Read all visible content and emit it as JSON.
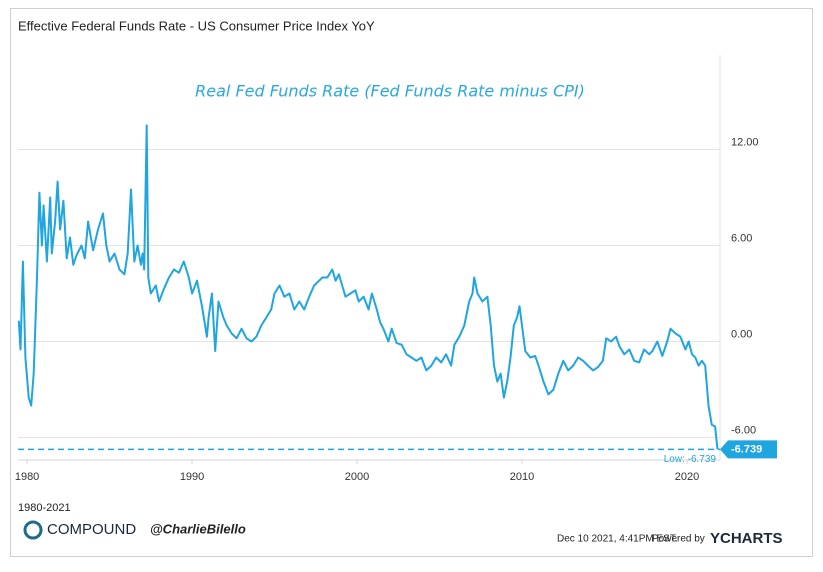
{
  "chart_data": {
    "type": "line",
    "title": "Effective Federal Funds Rate - US Consumer Price Index YoY",
    "annotation": "Real Fed Funds Rate (Fed Funds Rate minus CPI)",
    "color": "#1fa5e0",
    "x": [
      1979.5,
      1979.6,
      1979.75,
      1979.9,
      1980.1,
      1980.25,
      1980.4,
      1980.6,
      1980.75,
      1980.9,
      1981.0,
      1981.2,
      1981.4,
      1981.5,
      1981.7,
      1981.85,
      1982.0,
      1982.2,
      1982.4,
      1982.6,
      1982.8,
      1983.0,
      1983.3,
      1983.5,
      1983.7,
      1984.0,
      1984.3,
      1984.6,
      1984.8,
      1985.0,
      1985.3,
      1985.6,
      1985.9,
      1986.1,
      1986.3,
      1986.5,
      1986.7,
      1986.9,
      1987.0,
      1987.1,
      1987.25,
      1987.35,
      1987.5,
      1987.8,
      1988.0,
      1988.3,
      1988.6,
      1988.9,
      1989.2,
      1989.5,
      1989.8,
      1990.0,
      1990.3,
      1990.6,
      1990.9,
      1991.0,
      1991.2,
      1991.4,
      1991.6,
      1991.9,
      1992.1,
      1992.4,
      1992.7,
      1993.0,
      1993.3,
      1993.6,
      1993.9,
      1994.2,
      1994.5,
      1994.8,
      1995.0,
      1995.3,
      1995.6,
      1995.9,
      1996.2,
      1996.5,
      1996.8,
      1997.1,
      1997.4,
      1997.7,
      1997.9,
      1998.2,
      1998.5,
      1998.7,
      1998.9,
      1999.1,
      1999.3,
      1999.6,
      1999.9,
      2000.1,
      2000.4,
      2000.7,
      2000.9,
      2001.2,
      2001.4,
      2001.6,
      2001.9,
      2002.1,
      2002.4,
      2002.7,
      2003.0,
      2003.3,
      2003.6,
      2003.9,
      2004.2,
      2004.5,
      2004.8,
      2005.1,
      2005.4,
      2005.7,
      2005.9,
      2006.2,
      2006.5,
      2006.8,
      2007.0,
      2007.1,
      2007.3,
      2007.6,
      2007.9,
      2008.1,
      2008.3,
      2008.5,
      2008.7,
      2008.9,
      2009.1,
      2009.3,
      2009.5,
      2009.7,
      2009.85,
      2010.0,
      2010.2,
      2010.5,
      2010.8,
      2011.0,
      2011.3,
      2011.6,
      2011.9,
      2012.2,
      2012.5,
      2012.8,
      2013.1,
      2013.4,
      2013.7,
      2014.0,
      2014.3,
      2014.6,
      2014.9,
      2015.1,
      2015.4,
      2015.7,
      2015.9,
      2016.2,
      2016.5,
      2016.8,
      2017.1,
      2017.4,
      2017.7,
      2017.9,
      2018.2,
      2018.5,
      2018.8,
      2019.0,
      2019.3,
      2019.6,
      2019.9,
      2020.1,
      2020.3,
      2020.5,
      2020.7,
      2020.9,
      2021.1,
      2021.3,
      2021.5,
      2021.7,
      2021.85
    ],
    "values": [
      1.3,
      -0.5,
      5.0,
      -1.0,
      -3.5,
      -4.0,
      -2.0,
      4.0,
      9.3,
      6.0,
      8.5,
      5.0,
      9.0,
      5.5,
      7.5,
      10.0,
      7.0,
      8.8,
      5.2,
      6.5,
      4.8,
      5.4,
      6.0,
      5.2,
      7.5,
      5.7,
      7.0,
      8.0,
      6.0,
      5.0,
      5.5,
      4.5,
      4.2,
      5.5,
      9.5,
      5.0,
      6.0,
      4.8,
      5.5,
      4.5,
      13.5,
      4.0,
      3.0,
      3.5,
      2.5,
      3.3,
      4.0,
      4.5,
      4.3,
      5.0,
      4.0,
      3.0,
      3.8,
      2.2,
      0.3,
      1.5,
      3.0,
      -0.6,
      2.5,
      1.5,
      1.0,
      0.5,
      0.2,
      0.8,
      0.2,
      0.0,
      0.3,
      1.0,
      1.5,
      2.0,
      3.0,
      3.5,
      2.8,
      3.0,
      2.0,
      2.5,
      2.0,
      2.8,
      3.5,
      3.8,
      4.0,
      4.0,
      4.5,
      3.8,
      4.2,
      3.5,
      2.8,
      3.0,
      3.2,
      2.5,
      2.8,
      2.0,
      3.0,
      2.0,
      1.2,
      0.8,
      0.0,
      0.8,
      -0.1,
      -0.2,
      -0.8,
      -1.0,
      -1.2,
      -1.0,
      -1.8,
      -1.5,
      -1.0,
      -1.3,
      -0.8,
      -1.5,
      -0.2,
      0.3,
      1.0,
      2.5,
      3.0,
      4.0,
      3.0,
      2.5,
      2.8,
      1.0,
      -1.5,
      -2.5,
      -2.0,
      -3.5,
      -2.5,
      -1.0,
      1.0,
      1.5,
      2.2,
      1.0,
      -0.6,
      -1.0,
      -0.9,
      -1.5,
      -2.5,
      -3.3,
      -3.0,
      -2.0,
      -1.2,
      -1.8,
      -1.5,
      -1.0,
      -1.2,
      -1.5,
      -1.8,
      -1.6,
      -1.2,
      0.2,
      0.0,
      0.3,
      -0.3,
      -0.8,
      -0.5,
      -1.2,
      -1.3,
      -0.5,
      -0.8,
      -0.6,
      0.0,
      -0.9,
      0.0,
      0.8,
      0.5,
      0.3,
      -0.5,
      0.0,
      -0.8,
      -1.0,
      -1.5,
      -1.2,
      -1.5,
      -4.0,
      -5.2,
      -5.3,
      -6.739
    ],
    "xlim": [
      1979.45,
      2022.0
    ],
    "xticks": [
      1980,
      1990,
      2000,
      2010,
      2020
    ],
    "ylim": [
      -7.4,
      17.9
    ],
    "yticks": [
      {
        "value": -6,
        "label": "-6.00"
      },
      {
        "value": 0,
        "label": "0.00"
      },
      {
        "value": 6,
        "label": "6.00"
      },
      {
        "value": 12,
        "label": "12.00"
      }
    ],
    "grid": true,
    "low": {
      "value": -6.739,
      "label": "Low: -6.739"
    },
    "last": {
      "value": -6.739,
      "label": "-6.739"
    }
  },
  "footer": {
    "range": "1980-2021",
    "brand": "COMPOUND",
    "handle": "@CharlieBilello",
    "timestamp": "Dec 10 2021, 4:41PM EST.",
    "powered": "Powered by",
    "provider": "YCHARTS"
  }
}
